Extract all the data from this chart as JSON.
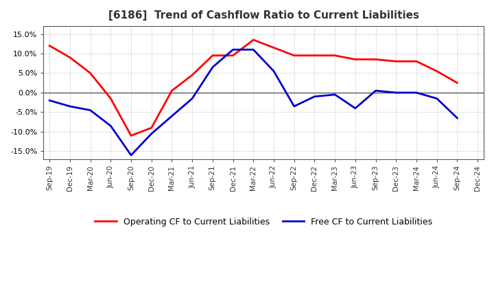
{
  "title": "[6186]  Trend of Cashflow Ratio to Current Liabilities",
  "title_fontsize": 11,
  "x_labels": [
    "Sep-19",
    "Dec-19",
    "Mar-20",
    "Jun-20",
    "Sep-20",
    "Dec-20",
    "Mar-21",
    "Jun-21",
    "Sep-21",
    "Dec-21",
    "Mar-22",
    "Jun-22",
    "Sep-22",
    "Dec-22",
    "Mar-23",
    "Jun-23",
    "Sep-23",
    "Dec-23",
    "Mar-24",
    "Jun-24",
    "Sep-24",
    "Dec-24"
  ],
  "operating_cf": [
    12.0,
    9.0,
    5.0,
    -1.5,
    -11.0,
    -9.0,
    0.5,
    4.5,
    9.5,
    9.5,
    13.5,
    11.5,
    9.5,
    9.5,
    9.5,
    8.5,
    8.5,
    8.0,
    8.0,
    5.5,
    2.5,
    null
  ],
  "free_cf": [
    -2.0,
    -3.5,
    -4.5,
    -8.5,
    -16.0,
    -10.5,
    -6.0,
    -1.5,
    6.5,
    11.0,
    11.0,
    5.5,
    -3.5,
    -1.0,
    -0.5,
    -4.0,
    0.5,
    0.0,
    0.0,
    -1.5,
    -6.5,
    null
  ],
  "operating_color": "#ff0000",
  "free_color": "#0000cc",
  "ylim": [
    -17.0,
    17.0
  ],
  "yticks": [
    -15.0,
    -10.0,
    -5.0,
    0.0,
    5.0,
    10.0,
    15.0
  ],
  "background_color": "#ffffff",
  "plot_bg_color": "#ffffff",
  "grid_color": "#aaaaaa",
  "zero_line_color": "#555555",
  "border_color": "#555555",
  "legend_labels": [
    "Operating CF to Current Liabilities",
    "Free CF to Current Liabilities"
  ]
}
